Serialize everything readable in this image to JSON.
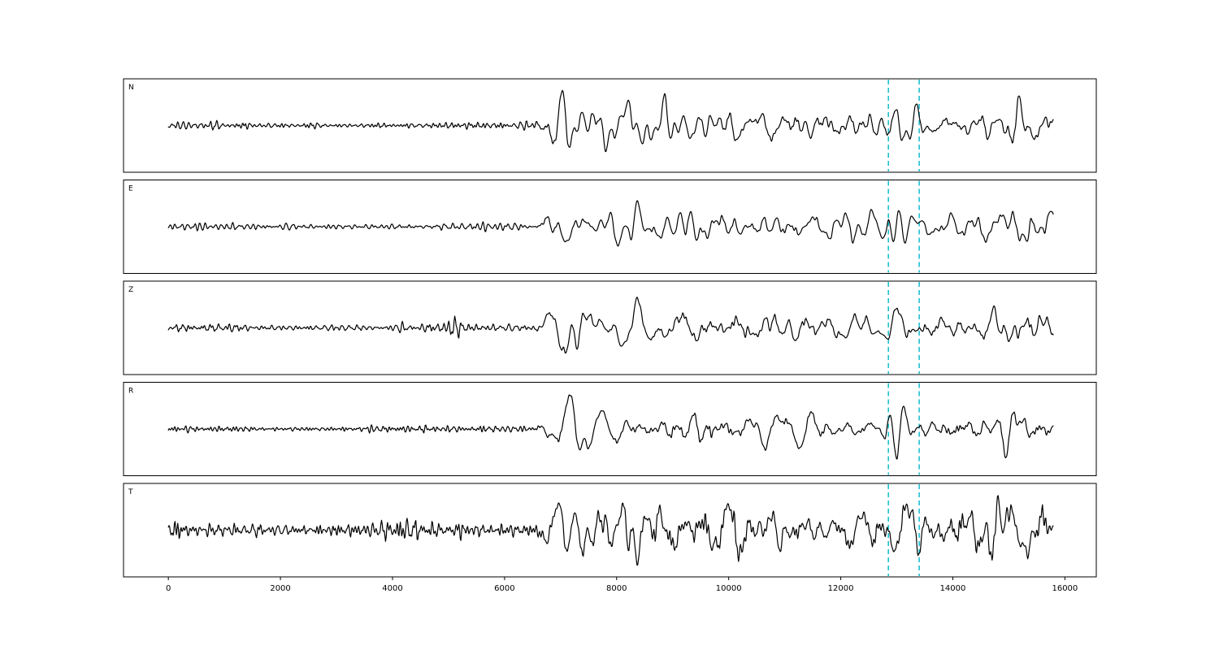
{
  "figure": {
    "background": "#ffffff"
  },
  "chart_data": {
    "type": "line",
    "title": "",
    "xlabel": "",
    "ylabel": "",
    "description": "Five-panel seismogram waveform figure. Component traces N, E, Z, R, T share an x axis in samples. Quiet pre-event noise until ~6450, strong arrival peaking near 7150, sustained coda, and a cyan dashed event window marked on every panel.",
    "x_ticks": [
      0,
      2000,
      4000,
      6000,
      8000,
      10000,
      12000,
      14000,
      16000
    ],
    "xlim": [
      -800,
      16560
    ],
    "grid": false,
    "legend": "none",
    "signal": {
      "start": 0,
      "end": 15800,
      "onset": 6450,
      "main_peak_x": 7150,
      "pre_event_burst_x": 5080,
      "late_burst_x": 13080,
      "end_swell_x": 15050
    },
    "event_window": {
      "x": [
        12850,
        13400
      ],
      "color": "#1fbfcf",
      "line_style": "dashed"
    },
    "trace_color": "#000000",
    "panels": [
      {
        "label": "N",
        "seed": 101,
        "pre": 0.08,
        "main": 1.0,
        "coda": 0.38,
        "burst": 0.55,
        "end": 0.18,
        "preburst": 0.0
      },
      {
        "label": "E",
        "seed": 202,
        "pre": 0.08,
        "main": 0.95,
        "coda": 0.42,
        "burst": 0.5,
        "end": 0.5,
        "preburst": 0.0
      },
      {
        "label": "Z",
        "seed": 303,
        "pre": 0.09,
        "main": 1.0,
        "coda": 0.33,
        "burst": 0.2,
        "end": 0.12,
        "preburst": 0.2
      },
      {
        "label": "R",
        "seed": 404,
        "pre": 0.08,
        "main": 0.92,
        "coda": 0.38,
        "burst": 0.75,
        "end": 0.45,
        "preburst": 0.0
      },
      {
        "label": "T",
        "seed": 505,
        "pre": 0.2,
        "main": 1.0,
        "coda": 0.55,
        "burst": 0.6,
        "end": 0.35,
        "preburst": 0.0
      }
    ]
  }
}
